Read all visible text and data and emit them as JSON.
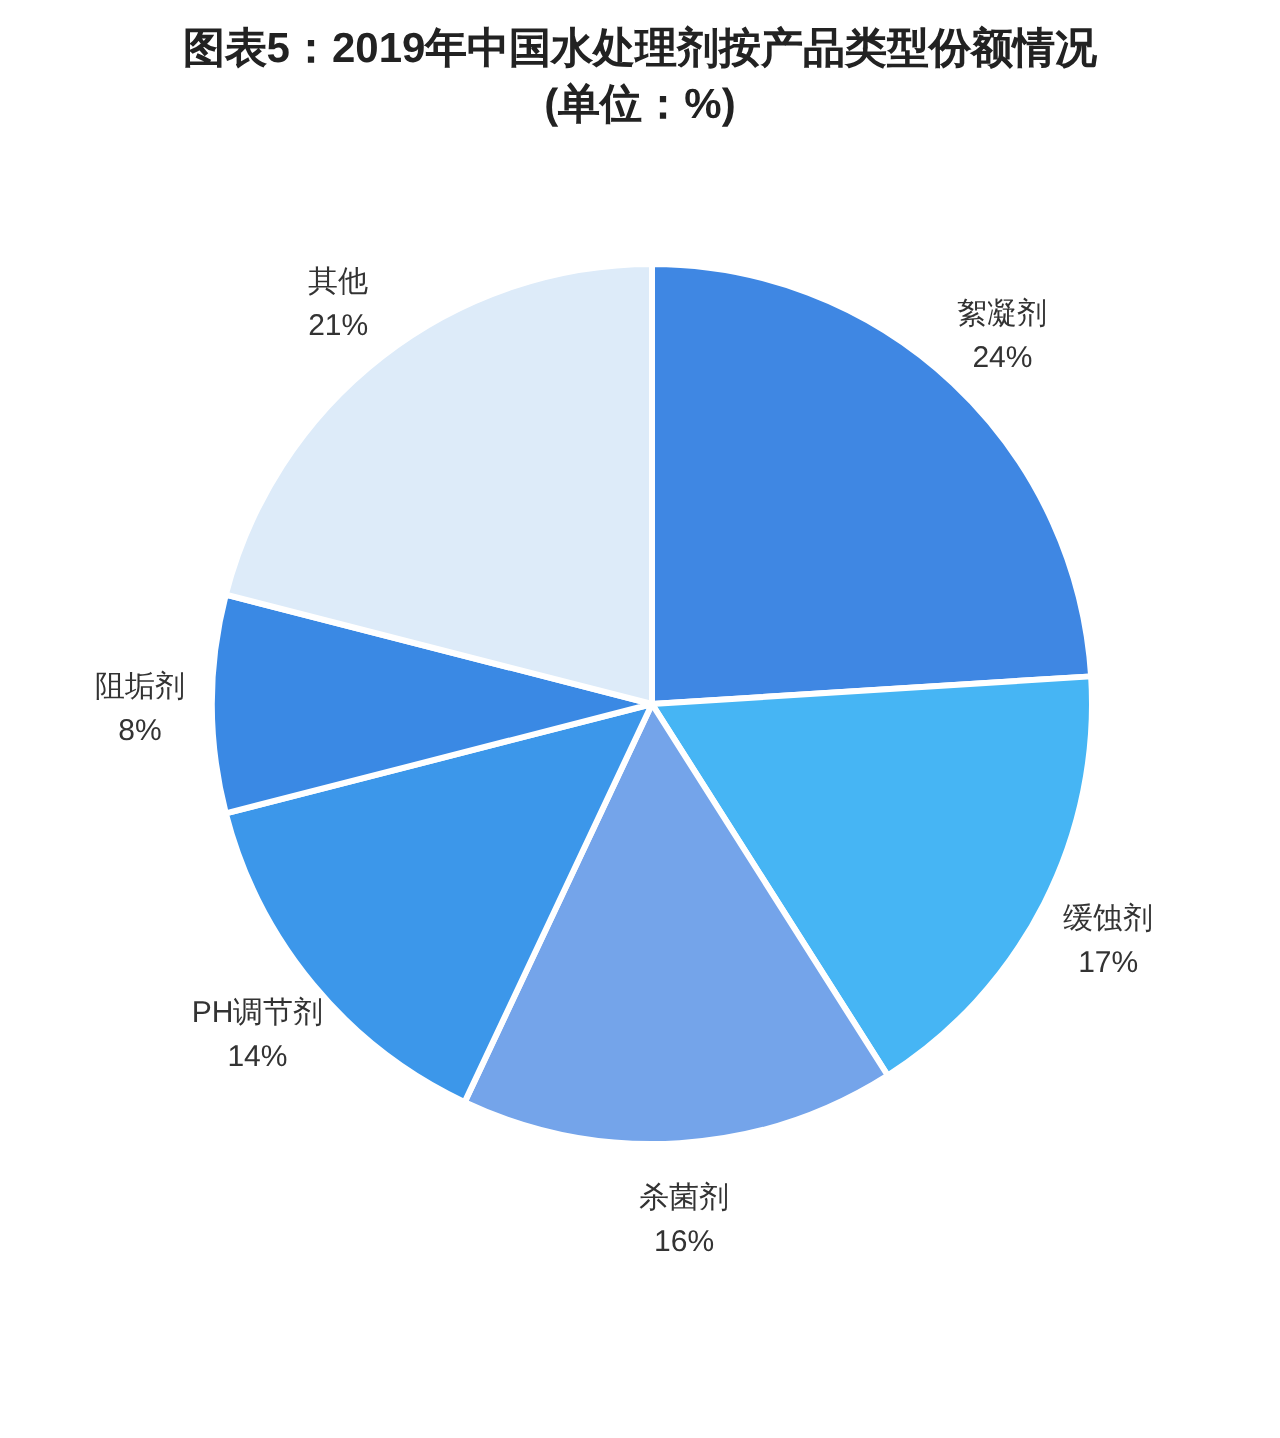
{
  "chart_data": {
    "type": "pie",
    "title": "图表5：2019年中国水处理剂按产品类型份额情况",
    "subtitle": "(单位：%)",
    "categories": [
      "絮凝剂",
      "缓蚀剂",
      "杀菌剂",
      "PH调节剂",
      "阻垢剂",
      "其他"
    ],
    "values": [
      24,
      17,
      16,
      14,
      8,
      21
    ],
    "value_labels": [
      "24%",
      "17%",
      "16%",
      "14%",
      "8%",
      "21%"
    ],
    "colors": [
      "#3f87e3",
      "#46b5f4",
      "#74a4ea",
      "#3c97ea",
      "#3a89e4",
      "#ddebf9"
    ]
  }
}
